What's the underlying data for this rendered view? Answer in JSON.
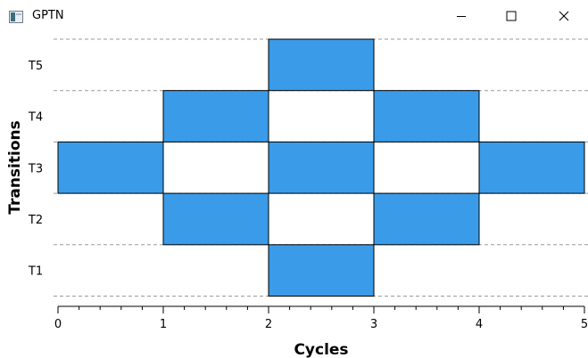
{
  "window": {
    "title": "GPTN",
    "app_icon": "window-app-icon",
    "controls": [
      "minimize-icon",
      "maximize-icon",
      "close-icon"
    ]
  },
  "colors": {
    "bar_fill": "#3a9be8",
    "gridline": "#9a9a9a",
    "axis": "#000000"
  },
  "chart_data": {
    "type": "bar",
    "orientation": "horizontal-ranges",
    "xlabel": "Cycles",
    "ylabel": "Transitions",
    "xlim": [
      0,
      5
    ],
    "xticks": [
      0,
      1,
      2,
      3,
      4,
      5
    ],
    "categories": [
      "T1",
      "T2",
      "T3",
      "T4",
      "T5"
    ],
    "grid": "horizontal-dashed",
    "bars": [
      {
        "category": "T3",
        "start": 0,
        "end": 1
      },
      {
        "category": "T2",
        "start": 1,
        "end": 2
      },
      {
        "category": "T4",
        "start": 1,
        "end": 2
      },
      {
        "category": "T1",
        "start": 2,
        "end": 3
      },
      {
        "category": "T3",
        "start": 2,
        "end": 3
      },
      {
        "category": "T5",
        "start": 2,
        "end": 3
      },
      {
        "category": "T2",
        "start": 3,
        "end": 4
      },
      {
        "category": "T4",
        "start": 3,
        "end": 4
      },
      {
        "category": "T3",
        "start": 4,
        "end": 5
      }
    ]
  }
}
